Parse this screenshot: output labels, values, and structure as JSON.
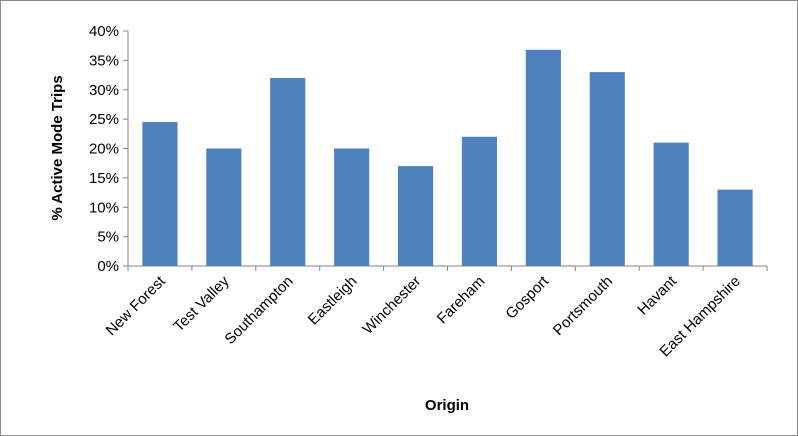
{
  "chart_data": {
    "type": "bar",
    "title": "",
    "xlabel": "Origin",
    "ylabel": "% Active Mode Trips",
    "categories": [
      "New Forest",
      "Test Valley",
      "Southampton",
      "Eastleigh",
      "Winchester",
      "Fareham",
      "Gosport",
      "Portsmouth",
      "Havant",
      "East Hampshire"
    ],
    "values": [
      24.5,
      20,
      32,
      20,
      17,
      22,
      36.8,
      33,
      21,
      13
    ],
    "ylim": [
      0,
      40
    ],
    "y_ticks": [
      0,
      5,
      10,
      15,
      20,
      25,
      30,
      35,
      40
    ],
    "y_tick_labels": [
      "0%",
      "5%",
      "10%",
      "15%",
      "20%",
      "25%",
      "30%",
      "35%",
      "40%"
    ],
    "grid": false,
    "legend": "none",
    "bar_color": "#4f81bd"
  }
}
